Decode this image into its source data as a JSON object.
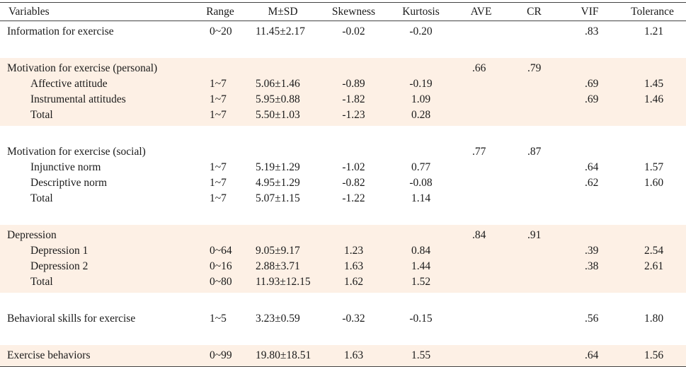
{
  "headers": [
    "Variables",
    "Range",
    "M±SD",
    "Skewness",
    "Kurtosis",
    "AVE",
    "CR",
    "VIF",
    "Tolerance"
  ],
  "groups": [
    {
      "shade": false,
      "rows": [
        {
          "variable": "Information for exercise",
          "range": "0~20",
          "msd": "11.45±2.17",
          "skewness": "-0.02",
          "kurtosis": "-0.20",
          "ave": "",
          "cr": "",
          "vif": ".83",
          "tolerance": "1.21"
        }
      ]
    },
    {
      "shade": true,
      "title": {
        "variable": "Motivation for exercise (personal)",
        "ave": ".66",
        "cr": ".79"
      },
      "rows": [
        {
          "variable": "Affective attitude",
          "range": "1~7",
          "msd": "5.06±1.46",
          "skewness": "-0.89",
          "kurtosis": "-0.19",
          "ave": "",
          "cr": "",
          "vif": ".69",
          "tolerance": "1.45"
        },
        {
          "variable": "Instrumental attitudes",
          "range": "1~7",
          "msd": "5.95±0.88",
          "skewness": "-1.82",
          "kurtosis": "1.09",
          "ave": "",
          "cr": "",
          "vif": ".69",
          "tolerance": "1.46"
        },
        {
          "variable": "Total",
          "range": "1~7",
          "msd": "5.50±1.03",
          "skewness": "-1.23",
          "kurtosis": "0.28",
          "ave": "",
          "cr": "",
          "vif": "",
          "tolerance": ""
        }
      ]
    },
    {
      "shade": false,
      "title": {
        "variable": "Motivation for exercise (social)",
        "ave": ".77",
        "cr": ".87"
      },
      "rows": [
        {
          "variable": "Injunctive norm",
          "range": "1~7",
          "msd": "5.19±1.29",
          "skewness": "-1.02",
          "kurtosis": "0.77",
          "ave": "",
          "cr": "",
          "vif": ".64",
          "tolerance": "1.57"
        },
        {
          "variable": "Descriptive norm",
          "range": "1~7",
          "msd": "4.95±1.29",
          "skewness": "-0.82",
          "kurtosis": "-0.08",
          "ave": "",
          "cr": "",
          "vif": ".62",
          "tolerance": "1.60"
        },
        {
          "variable": "Total",
          "range": "1~7",
          "msd": "5.07±1.15",
          "skewness": "-1.22",
          "kurtosis": "1.14",
          "ave": "",
          "cr": "",
          "vif": "",
          "tolerance": ""
        }
      ]
    },
    {
      "shade": true,
      "title": {
        "variable": "Depression",
        "ave": ".84",
        "cr": ".91"
      },
      "rows": [
        {
          "variable": "Depression 1",
          "range": "0~64",
          "msd": "9.05±9.17",
          "skewness": "1.23",
          "kurtosis": "0.84",
          "ave": "",
          "cr": "",
          "vif": ".39",
          "tolerance": "2.54"
        },
        {
          "variable": "Depression 2",
          "range": "0~16",
          "msd": "2.88±3.71",
          "skewness": "1.63",
          "kurtosis": "1.44",
          "ave": "",
          "cr": "",
          "vif": ".38",
          "tolerance": "2.61"
        },
        {
          "variable": "Total",
          "range": "0~80",
          "msd": "11.93±12.15",
          "skewness": "1.62",
          "kurtosis": "1.52",
          "ave": "",
          "cr": "",
          "vif": "",
          "tolerance": ""
        }
      ]
    },
    {
      "shade": false,
      "rows": [
        {
          "variable": "Behavioral skills for exercise",
          "range": "1~5",
          "msd": "3.23±0.59",
          "skewness": "-0.32",
          "kurtosis": "-0.15",
          "ave": "",
          "cr": "",
          "vif": ".56",
          "tolerance": "1.80"
        }
      ]
    },
    {
      "shade": true,
      "rows": [
        {
          "variable": "Exercise behaviors",
          "range": "0~99",
          "msd": "19.80±18.51",
          "skewness": "1.63",
          "kurtosis": "1.55",
          "ave": "",
          "cr": "",
          "vif": ".64",
          "tolerance": "1.56"
        }
      ]
    }
  ],
  "colors": {
    "shade": "#fdf0e5",
    "rule": "#444444",
    "text": "#1a1a1a"
  }
}
